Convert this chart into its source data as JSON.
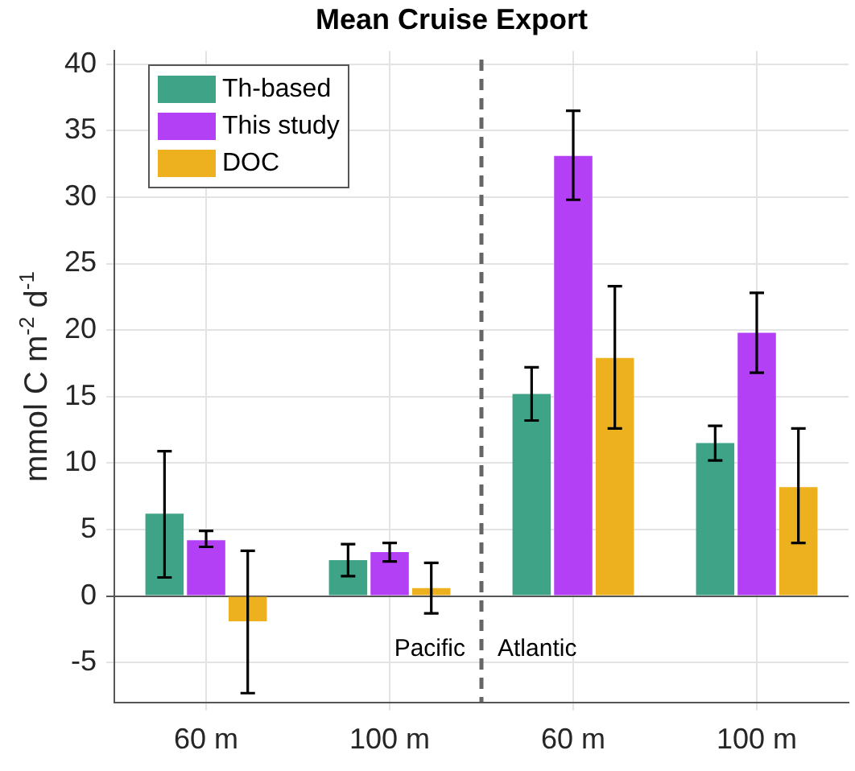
{
  "chart_data": {
    "type": "bar",
    "title": "Mean Cruise Export",
    "ylabel": "mmol C m$^{-2}$ d$^{-1}$",
    "categories": [
      "60 m",
      "100 m",
      "60 m",
      "100 m"
    ],
    "series": [
      {
        "name": "Th-based",
        "color": "#3ea387",
        "values": [
          6.2,
          2.7,
          15.2,
          11.5
        ],
        "errors": [
          [
            1.4,
            10.9
          ],
          [
            1.5,
            3.9
          ],
          [
            13.2,
            17.2
          ],
          [
            10.2,
            12.8
          ]
        ]
      },
      {
        "name": "This study",
        "color": "#b340f5",
        "values": [
          4.2,
          3.3,
          33.1,
          19.8
        ],
        "errors": [
          [
            3.7,
            4.9
          ],
          [
            2.6,
            4.0
          ],
          [
            29.8,
            36.5
          ],
          [
            16.8,
            22.8
          ]
        ]
      },
      {
        "name": "DOC",
        "color": "#edb120",
        "values": [
          -1.9,
          0.6,
          17.9,
          8.2
        ],
        "errors": [
          [
            -7.3,
            3.4
          ],
          [
            -1.3,
            2.5
          ],
          [
            12.6,
            23.3
          ],
          [
            4.0,
            12.6
          ]
        ]
      }
    ],
    "ylim": [
      -8,
      41
    ],
    "yticks": [
      -5,
      0,
      5,
      10,
      15,
      20,
      25,
      30,
      35,
      40
    ],
    "grid": true,
    "legend": "top left",
    "annotations": [
      "Pacific",
      "Atlantic"
    ]
  }
}
